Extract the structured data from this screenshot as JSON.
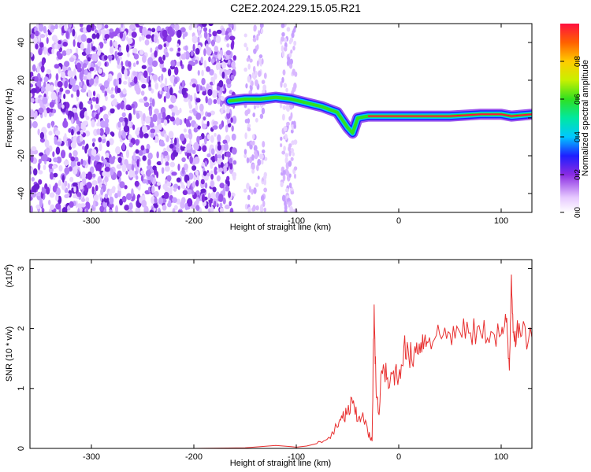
{
  "title": "C2E2.2024.229.15.05.R21",
  "chart_data": [
    {
      "type": "heatmap",
      "xlabel": "Height of straight line (km)",
      "ylabel": "Frequency (Hz)",
      "xlim": [
        -360,
        130
      ],
      "ylim": [
        -50,
        50
      ],
      "xticks": [
        -300,
        -200,
        -100,
        0,
        100
      ],
      "yticks": [
        -40,
        -20,
        0,
        20,
        40
      ],
      "colorbar": {
        "label": "Normalized spectral amplitude",
        "range": [
          0,
          1
        ],
        "ticks": [
          "0.0",
          "0.2",
          "0.4",
          "0.6",
          "0.8"
        ]
      },
      "noise_region_x": [
        -360,
        -160
      ],
      "weak_noise_bands_x": [
        [
          -150,
          -130
        ],
        [
          -115,
          -100
        ]
      ],
      "signal_trace": {
        "x": [
          -165,
          -150,
          -135,
          -120,
          -105,
          -90,
          -75,
          -60,
          -50,
          -45,
          -40,
          -30,
          -20,
          0,
          20,
          50,
          80,
          100,
          110,
          130
        ],
        "y": [
          9,
          10,
          10,
          11,
          10,
          8,
          6,
          3,
          -5,
          -8,
          0,
          1,
          1,
          1,
          1,
          1,
          2,
          2,
          1,
          2
        ],
        "peak_amplitude": 0.95
      }
    },
    {
      "type": "line",
      "xlabel": "Height of straight line (km)",
      "ylabel": "SNR (10 * v/v)",
      "y_scale_label": "(x10",
      "y_scale_exp": "4",
      "y_scale_close": ")",
      "xlim": [
        -360,
        130
      ],
      "ylim": [
        0,
        3.15
      ],
      "xticks": [
        -300,
        -200,
        -100,
        0,
        100
      ],
      "yticks": [
        0,
        1,
        2,
        3
      ],
      "color": "#e83030",
      "series": [
        {
          "x": [
            -360,
            -300,
            -200,
            -150,
            -120,
            -105,
            -100,
            -90,
            -80,
            -70,
            -60,
            -55,
            -50,
            -45,
            -40,
            -35,
            -30,
            -26,
            -24,
            -22,
            -20,
            -15,
            -10,
            -5,
            0,
            5,
            10,
            15,
            20,
            25,
            30,
            40,
            50,
            60,
            70,
            80,
            90,
            100,
            105,
            108,
            110,
            112,
            115,
            120,
            130
          ],
          "y": [
            0.0,
            0.0,
            0.0,
            0.01,
            0.05,
            0.03,
            0.02,
            0.04,
            0.08,
            0.15,
            0.35,
            0.5,
            0.6,
            0.75,
            0.45,
            0.6,
            0.25,
            0.12,
            2.4,
            0.9,
            0.6,
            1.4,
            1.0,
            1.3,
            1.2,
            1.7,
            1.5,
            1.6,
            1.75,
            1.8,
            1.85,
            1.9,
            1.92,
            1.93,
            1.93,
            1.92,
            1.95,
            1.9,
            2.1,
            1.3,
            2.9,
            1.95,
            1.9,
            1.88,
            1.85
          ]
        }
      ]
    }
  ]
}
